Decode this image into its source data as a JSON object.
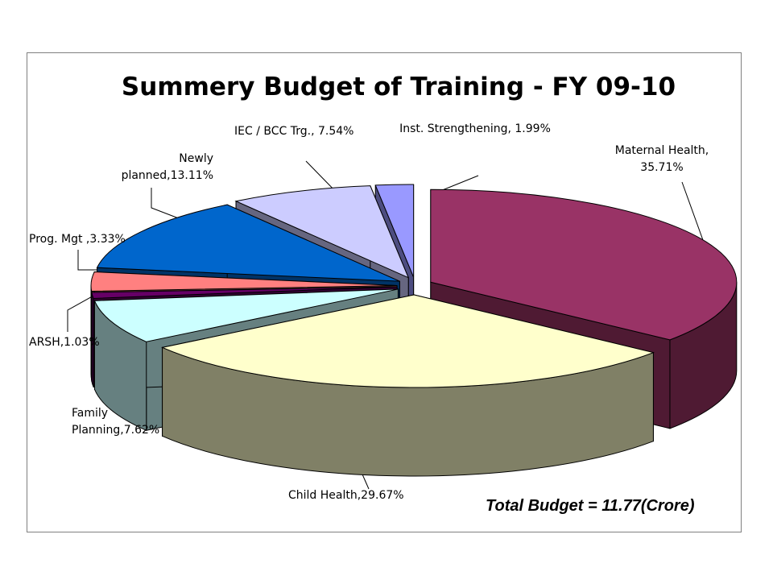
{
  "chart_data": {
    "type": "pie",
    "title": "Summery Budget of Training - FY 09-10",
    "annotation": "Total Budget = 11.77(Crore)",
    "style": "3d-exploded",
    "slices": [
      {
        "label": "Maternal Health, 35.71%",
        "value": 35.71,
        "top": "#993366",
        "side": "#4f1a33"
      },
      {
        "label": "Child Health,29.67%",
        "value": 29.67,
        "top": "#ffffcc",
        "side": "#808066"
      },
      {
        "label": "Family Planning,7.62%",
        "value": 7.62,
        "top": "#ccffff",
        "side": "#668080"
      },
      {
        "label": "ARSH,1.03%",
        "value": 1.03,
        "top": "#660066",
        "side": "#330033"
      },
      {
        "label": "Prog. Mgt ,3.33%",
        "value": 3.33,
        "top": "#ff8080",
        "side": "#804040"
      },
      {
        "label": "Newly planned,13.11%",
        "value": 13.11,
        "top": "#0066cc",
        "side": "#003366"
      },
      {
        "label": "IEC / BCC Trg., 7.54%",
        "value": 7.54,
        "top": "#ccccff",
        "side": "#666680"
      },
      {
        "label": "Inst. Strengthening, 1.99%",
        "value": 1.99,
        "top": "#9999ff",
        "side": "#4d4d80"
      }
    ]
  }
}
